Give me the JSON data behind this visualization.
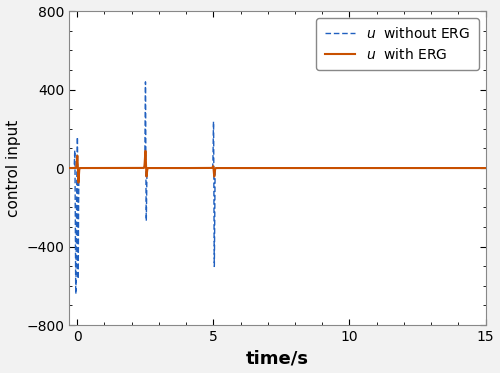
{
  "xlabel": "time/s",
  "ylabel": "control input",
  "xlim": [
    -0.3,
    15
  ],
  "ylim": [
    -800,
    800
  ],
  "xticks": [
    0,
    5,
    10,
    15
  ],
  "yticks": [
    -800,
    -400,
    0,
    400,
    800
  ],
  "line_erg_color": "#c85000",
  "line_no_erg_color": "#2060c0",
  "legend_labels": [
    "$u$  with ERG",
    "$u$  without ERG"
  ],
  "figsize": [
    5.0,
    3.73
  ],
  "dpi": 100,
  "bg_color": "#f0f0f0"
}
